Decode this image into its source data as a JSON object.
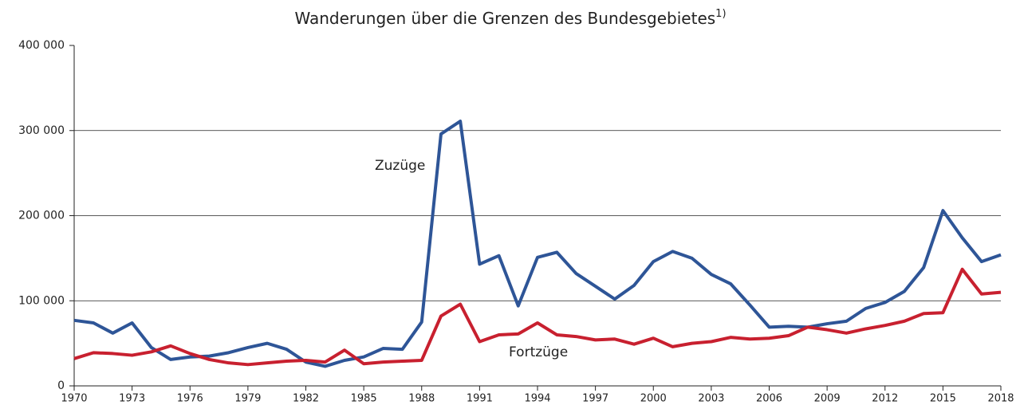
{
  "chart_data": {
    "type": "line",
    "title": "Wanderungen über die Grenzen des Bundesgebietes",
    "title_footnote": "1)",
    "x": [
      1970,
      1971,
      1972,
      1973,
      1974,
      1975,
      1976,
      1977,
      1978,
      1979,
      1980,
      1981,
      1982,
      1983,
      1984,
      1985,
      1986,
      1987,
      1988,
      1989,
      1990,
      1991,
      1992,
      1993,
      1994,
      1995,
      1996,
      1997,
      1998,
      1999,
      2000,
      2001,
      2002,
      2003,
      2004,
      2005,
      2006,
      2007,
      2008,
      2009,
      2010,
      2011,
      2012,
      2013,
      2014,
      2015,
      2016,
      2017,
      2018
    ],
    "series": [
      {
        "name": "Zuzüge",
        "color": "#2e5597",
        "values": [
          77000,
          74000,
          62000,
          74000,
          45000,
          31000,
          34000,
          35000,
          39000,
          45000,
          50000,
          43000,
          28000,
          23000,
          30000,
          34000,
          44000,
          43000,
          75000,
          296000,
          311000,
          143000,
          153000,
          94000,
          151000,
          157000,
          132000,
          117000,
          102000,
          118000,
          146000,
          158000,
          150000,
          131000,
          120000,
          95000,
          69000,
          70000,
          69000,
          73000,
          76000,
          91000,
          98000,
          111000,
          139000,
          206000,
          174000,
          146000,
          154000
        ]
      },
      {
        "name": "Fortzüge",
        "color": "#c8202f",
        "values": [
          32000,
          39000,
          38000,
          36000,
          40000,
          47000,
          38000,
          31000,
          27000,
          25000,
          27000,
          29000,
          30000,
          28000,
          42000,
          26000,
          28000,
          29000,
          30000,
          82000,
          96000,
          52000,
          60000,
          61000,
          74000,
          60000,
          58000,
          54000,
          55000,
          49000,
          56000,
          46000,
          50000,
          52000,
          57000,
          55000,
          56000,
          59000,
          69000,
          66000,
          62000,
          67000,
          71000,
          76000,
          85000,
          86000,
          137000,
          108000,
          110000
        ]
      }
    ],
    "xlim": [
      1970,
      2018
    ],
    "xticks": [
      1970,
      1973,
      1976,
      1979,
      1982,
      1985,
      1988,
      1991,
      1994,
      1997,
      2000,
      2003,
      2006,
      2009,
      2012,
      2015,
      2018
    ],
    "ylim": [
      0,
      400000
    ],
    "yticks": [
      0,
      {
        "value": 100000,
        "label": "100 000"
      },
      {
        "value": 200000,
        "label": "200 000"
      },
      {
        "value": 300000,
        "label": "300 000"
      },
      {
        "value": 400000,
        "label": "400 000"
      }
    ],
    "grid": true
  }
}
